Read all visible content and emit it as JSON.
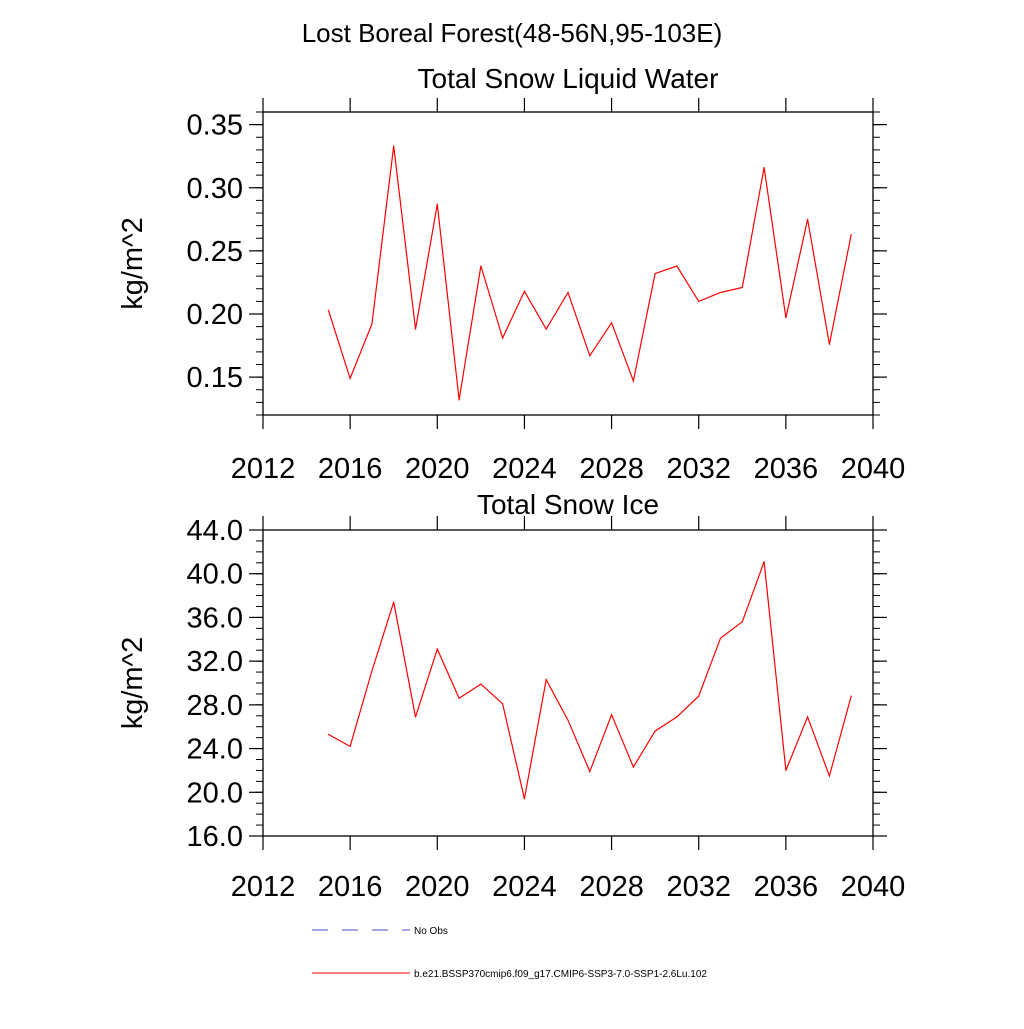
{
  "suptitle": "Lost Boreal Forest(48-56N,95-103E)",
  "colors": {
    "model": "#ff0000",
    "obs": "#4d4dc8",
    "axis": "#000000"
  },
  "legend": {
    "items": [
      {
        "label": "No Obs",
        "style": "dashed",
        "color": "#4d4dc8"
      },
      {
        "label": "b.e21.BSSP370cmip6.f09_g17.CMIP6-SSP3-7.0-SSP1-2.6Lu.102",
        "style": "solid",
        "color": "#ff0000"
      }
    ]
  },
  "chart_data": [
    {
      "type": "line",
      "title": "Total Snow Liquid Water",
      "xlabel": "",
      "ylabel": "kg/m^2",
      "xlim": [
        2012,
        2040
      ],
      "ylim": [
        0.12,
        0.36
      ],
      "xticks": [
        2012,
        2016,
        2020,
        2024,
        2028,
        2032,
        2036,
        2040
      ],
      "xtick_labels": [
        "2012",
        "2016",
        "2020",
        "2024",
        "2028",
        "2032",
        "2036",
        "2040"
      ],
      "yticks": [
        0.15,
        0.2,
        0.25,
        0.3,
        0.35
      ],
      "ytick_labels": [
        "0.15",
        "0.20",
        "0.25",
        "0.30",
        "0.35"
      ],
      "yminor_step": 0.01,
      "grid": false,
      "series": [
        {
          "color": "#ff0000",
          "x": [
            2015,
            2016,
            2017,
            2018,
            2019,
            2020,
            2021,
            2022,
            2023,
            2024,
            2025,
            2026,
            2027,
            2028,
            2029,
            2030,
            2031,
            2032,
            2033,
            2034,
            2035,
            2036,
            2037,
            2038,
            2039
          ],
          "y": [
            0.203,
            0.149,
            0.192,
            0.333,
            0.188,
            0.287,
            0.132,
            0.238,
            0.181,
            0.218,
            0.188,
            0.217,
            0.167,
            0.193,
            0.147,
            0.232,
            0.238,
            0.21,
            0.217,
            0.221,
            0.316,
            0.197,
            0.275,
            0.176,
            0.263
          ]
        }
      ]
    },
    {
      "type": "line",
      "title": "Total Snow Ice",
      "xlabel": "",
      "ylabel": "kg/m^2",
      "xlim": [
        2012,
        2040
      ],
      "ylim": [
        16.0,
        44.0
      ],
      "xticks": [
        2012,
        2016,
        2020,
        2024,
        2028,
        2032,
        2036,
        2040
      ],
      "xtick_labels": [
        "2012",
        "2016",
        "2020",
        "2024",
        "2028",
        "2032",
        "2036",
        "2040"
      ],
      "yticks": [
        16,
        20,
        24,
        28,
        32,
        36,
        40,
        44
      ],
      "ytick_labels": [
        "16.0",
        "20.0",
        "24.0",
        "28.0",
        "32.0",
        "36.0",
        "40.0",
        "44.0"
      ],
      "yminor_step": 1,
      "grid": false,
      "series": [
        {
          "color": "#ff0000",
          "x": [
            2015,
            2016,
            2017,
            2018,
            2019,
            2020,
            2021,
            2022,
            2023,
            2024,
            2025,
            2026,
            2027,
            2028,
            2029,
            2030,
            2031,
            2032,
            2033,
            2034,
            2035,
            2036,
            2037,
            2038,
            2039
          ],
          "y": [
            25.3,
            24.2,
            31.1,
            37.4,
            26.9,
            33.1,
            28.6,
            29.9,
            28.1,
            19.4,
            30.3,
            26.6,
            21.9,
            27.1,
            22.3,
            25.6,
            26.9,
            28.8,
            34.1,
            35.6,
            41.1,
            22.0,
            26.9,
            21.5,
            28.8
          ]
        }
      ]
    }
  ]
}
